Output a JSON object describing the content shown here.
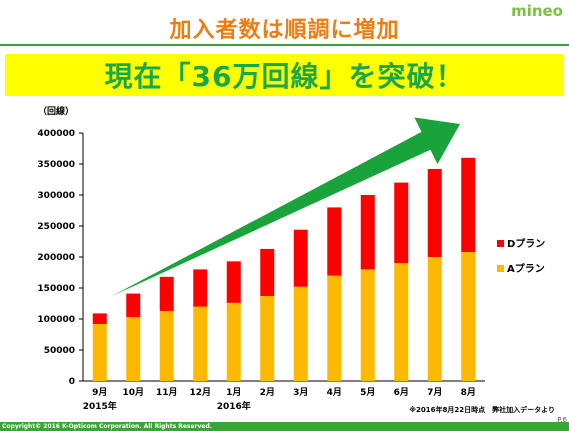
{
  "header": {
    "title": "加入者数は順調に増加",
    "logo": "mineo"
  },
  "banner": {
    "text": "現在「36万回線」を突破！"
  },
  "footer": {
    "note": "※2016年8月22日時点　弊社加入データより",
    "page_number": "P.6",
    "copyright": "Copyright© 2016 K-Opticom Corporation. All Rights Reserved."
  },
  "colors": {
    "title": "#ee7d10",
    "banner_bg": "#ffff00",
    "banner_text": "#18a74a",
    "a_plan": "#fcb900",
    "d_plan": "#ff0000",
    "arrow": "#1aa33a",
    "footer_bar": "#3aa537"
  },
  "chart_data": {
    "type": "bar",
    "stacked": true,
    "title": "",
    "ylabel": "（回線）",
    "xlabel": "",
    "categories": [
      "9月",
      "10月",
      "11月",
      "12月",
      "1月",
      "2月",
      "3月",
      "4月",
      "5月",
      "6月",
      "7月",
      "8月"
    ],
    "year_labels": [
      {
        "category_index": 0,
        "text": "2015年"
      },
      {
        "category_index": 4,
        "text": "2016年"
      }
    ],
    "ylim": [
      0,
      400000
    ],
    "yticks": [
      0,
      50000,
      100000,
      150000,
      200000,
      250000,
      300000,
      350000,
      400000
    ],
    "ytick_labels": [
      "0",
      "50000",
      "100000",
      "150000",
      "200000",
      "250000",
      "300000",
      "350000",
      "400000"
    ],
    "series": [
      {
        "name": "Aプラン",
        "color": "#fcb900",
        "values": [
          92000,
          103000,
          113000,
          120000,
          126000,
          137000,
          152000,
          170000,
          180000,
          190000,
          200000,
          208000
        ]
      },
      {
        "name": "Dプラン",
        "color": "#ff0000",
        "values": [
          17000,
          38000,
          55000,
          60000,
          67000,
          76000,
          92000,
          110000,
          120000,
          130000,
          142000,
          152000
        ]
      }
    ],
    "legend": {
      "position": "right",
      "order": [
        "Dプラン",
        "Aプラン"
      ]
    },
    "grid": false,
    "annotation": "upward trend arrow"
  }
}
